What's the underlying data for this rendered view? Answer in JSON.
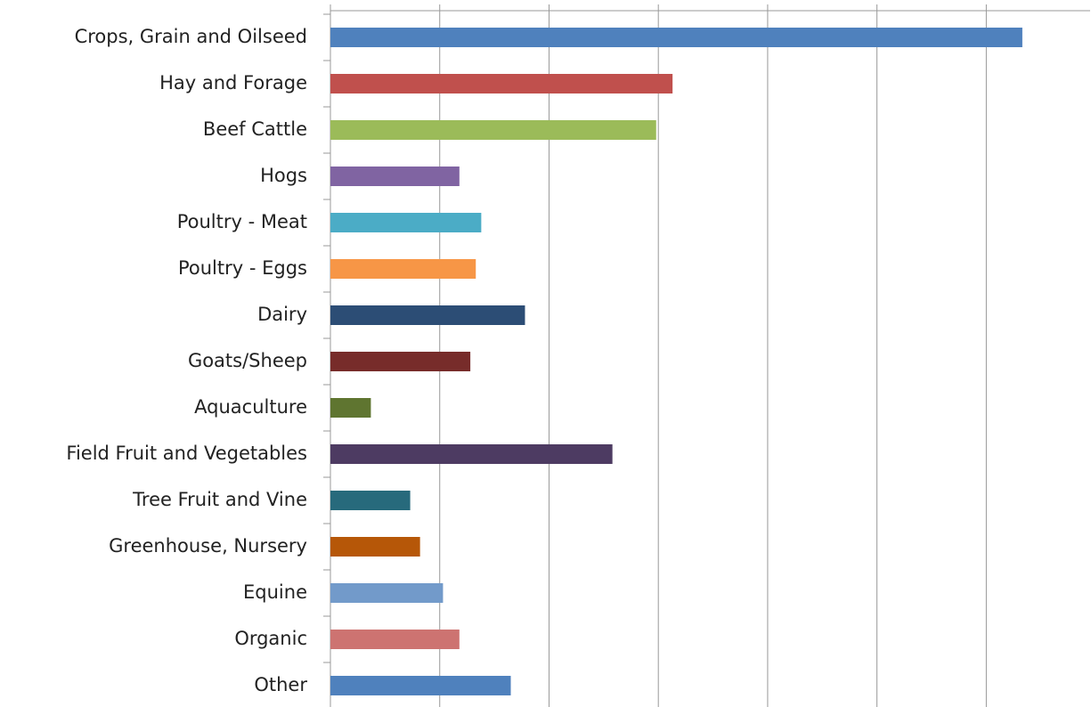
{
  "chart_data": {
    "type": "barh",
    "categories": [
      "Crops, Grain and Oilseed",
      "Hay and Forage",
      "Beef Cattle",
      "Hogs",
      "Poultry - Meat",
      "Poultry - Eggs",
      "Dairy",
      "Goats/Sheep",
      "Aquaculture",
      "Field Fruit and Vegetables",
      "Tree Fruit and Vine",
      "Greenhouse, Nursery",
      "Equine",
      "Organic",
      "Other"
    ],
    "values": [
      6.33,
      3.13,
      2.98,
      1.18,
      1.38,
      1.33,
      1.78,
      1.28,
      0.37,
      2.58,
      0.73,
      0.82,
      1.03,
      1.18,
      1.65
    ],
    "colors": [
      "#4f81bd",
      "#c0504d",
      "#9bbb59",
      "#8064a2",
      "#4bacc6",
      "#f79646",
      "#2c4d75",
      "#772c2a",
      "#5f7530",
      "#4d3b62",
      "#276a7c",
      "#b65708",
      "#729aca",
      "#cd7371",
      "#4f81bd"
    ],
    "xlim": [
      0,
      6.95
    ],
    "xticks": [
      0,
      1,
      2,
      3,
      4,
      5,
      6
    ],
    "grid": true
  }
}
